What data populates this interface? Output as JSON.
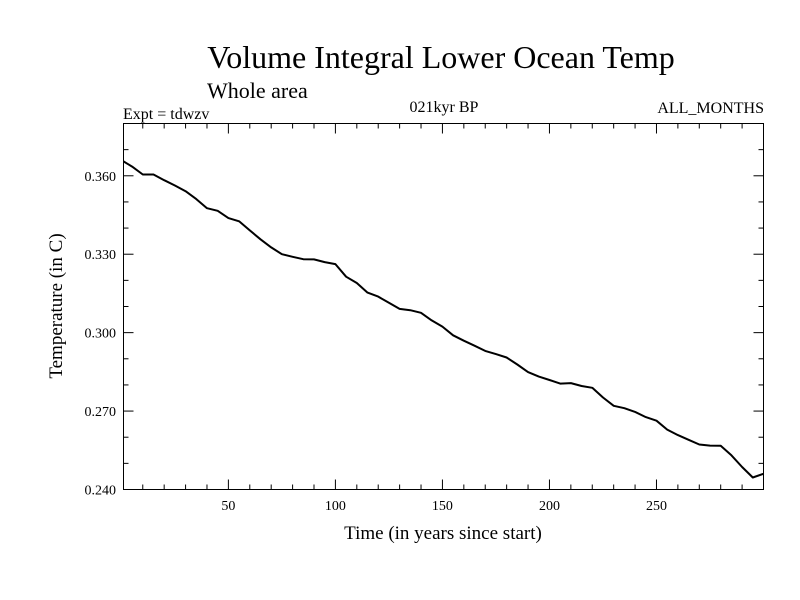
{
  "chart_data": {
    "type": "line",
    "title": "Volume Integral Lower Ocean Temp",
    "subtitle": "Whole area",
    "expt_label": "Expt = tdwzv",
    "period_label": "021kyr BP",
    "months_label": "ALL_MONTHS",
    "xlabel": "Time (in years since start)",
    "ylabel": "Temperature (in C)",
    "xlim": [
      1,
      300
    ],
    "ylim": [
      0.24,
      0.38
    ],
    "xticks": [
      50,
      100,
      150,
      200,
      250
    ],
    "xtick_labels": [
      "50",
      "100",
      "150",
      "200",
      "250"
    ],
    "yticks": [
      0.24,
      0.27,
      0.3,
      0.33,
      0.36
    ],
    "ytick_labels": [
      "0.240",
      "0.270",
      "0.300",
      "0.330",
      "0.360"
    ],
    "grid": false,
    "series": [
      {
        "x": [
          1,
          5,
          10,
          15,
          20,
          25,
          30,
          35,
          40,
          45,
          50,
          55,
          60,
          65,
          70,
          75,
          80,
          85,
          90,
          95,
          100,
          105,
          110,
          115,
          120,
          125,
          130,
          135,
          140,
          145,
          150,
          155,
          160,
          165,
          170,
          175,
          180,
          185,
          190,
          195,
          200,
          205,
          210,
          215,
          220,
          225,
          230,
          235,
          240,
          245,
          250,
          255,
          260,
          265,
          270,
          275,
          280,
          285,
          290,
          295,
          300
        ],
        "values": [
          0.3655,
          0.3635,
          0.3605,
          0.3605,
          0.3583,
          0.3563,
          0.3541,
          0.3511,
          0.3476,
          0.3466,
          0.3438,
          0.3426,
          0.3391,
          0.3357,
          0.3326,
          0.33,
          0.329,
          0.3281,
          0.328,
          0.327,
          0.3262,
          0.3214,
          0.319,
          0.3153,
          0.3138,
          0.3114,
          0.3091,
          0.3086,
          0.3076,
          0.3047,
          0.3023,
          0.299,
          0.2969,
          0.295,
          0.293,
          0.2918,
          0.2905,
          0.2878,
          0.2849,
          0.2832,
          0.2819,
          0.2805,
          0.2807,
          0.2796,
          0.2789,
          0.2752,
          0.272,
          0.2711,
          0.2697,
          0.2677,
          0.2663,
          0.2629,
          0.2608,
          0.259,
          0.2572,
          0.2568,
          0.2567,
          0.2531,
          0.2486,
          0.2446,
          0.246
        ]
      }
    ]
  }
}
